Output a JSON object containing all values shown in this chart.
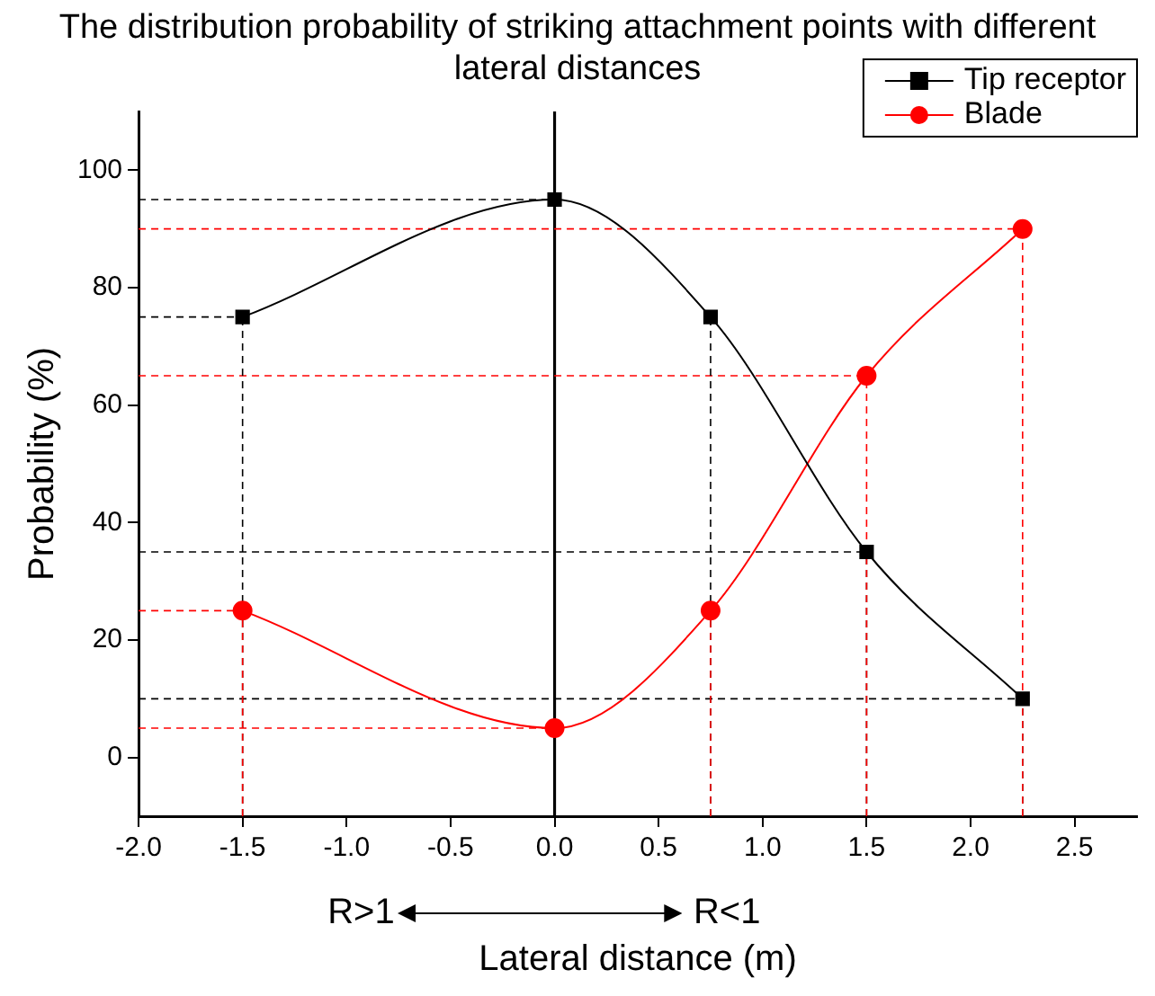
{
  "chart_data": {
    "type": "line",
    "title": "The distribution probability of striking attachment points with different lateral distances",
    "xlabel": "Lateral distance (m)",
    "ylabel": "Probability (%)",
    "x": [
      -1.5,
      0,
      0.75,
      1.5,
      2.25
    ],
    "series": [
      {
        "name": "Tip receptor",
        "color": "#000000",
        "marker": "square",
        "values": [
          75,
          95,
          75,
          35,
          10
        ]
      },
      {
        "name": "Blade",
        "color": "#ff0000",
        "marker": "circle",
        "values": [
          25,
          5,
          25,
          65,
          90
        ]
      }
    ],
    "xlim": [
      -2,
      2.8
    ],
    "xticks": [
      {
        "value": -2,
        "label": "-2.0"
      },
      {
        "value": -1.5,
        "label": "-1.5"
      },
      {
        "value": -1,
        "label": "-1.0"
      },
      {
        "value": -0.5,
        "label": "-0.5"
      },
      {
        "value": 0,
        "label": "0.0"
      },
      {
        "value": 0.5,
        "label": "0.5"
      },
      {
        "value": 1,
        "label": "1.0"
      },
      {
        "value": 1.5,
        "label": "1.5"
      },
      {
        "value": 2,
        "label": "2.0"
      },
      {
        "value": 2.5,
        "label": "2.5"
      }
    ],
    "ylim": [
      -10,
      110
    ],
    "yticks": [
      0,
      20,
      40,
      60,
      80,
      100
    ],
    "ref_lines": [
      {
        "axis": "x",
        "value": 0,
        "color": "#000000",
        "line_style": "solid"
      },
      {
        "axis": "y",
        "value": 95,
        "color": "#000000",
        "line_style": "dashed"
      },
      {
        "axis": "y",
        "value": 75,
        "color": "#000000",
        "line_style": "dashed"
      },
      {
        "axis": "y",
        "value": 35,
        "color": "#000000",
        "line_style": "dashed"
      },
      {
        "axis": "y",
        "value": 10,
        "color": "#000000",
        "line_style": "dashed"
      },
      {
        "axis": "y",
        "value": 90,
        "color": "#ff0000",
        "line_style": "dashed"
      },
      {
        "axis": "y",
        "value": 65,
        "color": "#ff0000",
        "line_style": "dashed"
      },
      {
        "axis": "y",
        "value": 25,
        "color": "#ff0000",
        "line_style": "dashed"
      },
      {
        "axis": "y",
        "value": 5,
        "color": "#ff0000",
        "line_style": "dashed"
      },
      {
        "axis": "x",
        "value": -1.5,
        "color": "#000000",
        "line_style": "dashed"
      },
      {
        "axis": "x",
        "value": 0.75,
        "color": "#000000",
        "line_style": "dashed"
      },
      {
        "axis": "x",
        "value": 1.5,
        "color": "#000000",
        "line_style": "dashed"
      },
      {
        "axis": "x",
        "value": 2.25,
        "color": "#000000",
        "line_style": "dashed"
      },
      {
        "axis": "x",
        "value": -1.5,
        "color": "#ff0000",
        "line_style": "dashed"
      },
      {
        "axis": "x",
        "value": 0.75,
        "color": "#ff0000",
        "line_style": "dashed"
      },
      {
        "axis": "x",
        "value": 1.5,
        "color": "#ff0000",
        "line_style": "dashed"
      },
      {
        "axis": "x",
        "value": 2.25,
        "color": "#ff0000",
        "line_style": "dashed"
      }
    ],
    "annotations": [
      "R>1",
      "R<1"
    ],
    "grid": false,
    "legend": "top right",
    "line_style": "solid"
  }
}
